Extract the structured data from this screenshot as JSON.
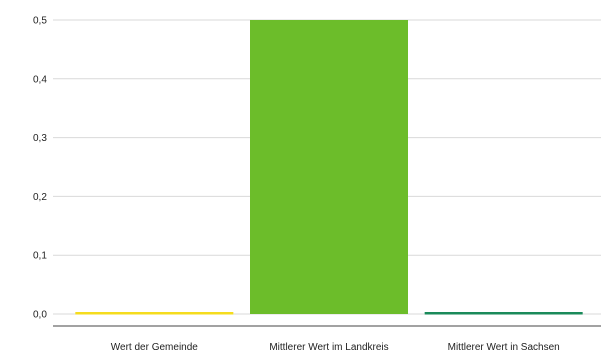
{
  "chart_data": {
    "type": "bar",
    "categories": [
      "Wert der Gemeinde",
      "Mittlerer Wert im Landkreis",
      "Mittlerer Wert in Sachsen"
    ],
    "values": [
      0.0,
      0.5,
      0.0
    ],
    "colors": [
      "#f5dc1e",
      "#6cbd2a",
      "#1a8a5a"
    ],
    "ylim": [
      0,
      0.5
    ],
    "yticks": [
      0.0,
      0.1,
      0.2,
      0.3,
      0.4,
      0.5
    ],
    "ytick_labels": [
      "0,0",
      "0,1",
      "0,2",
      "0,3",
      "0,4",
      "0,5"
    ],
    "grid": true,
    "legend": "none"
  }
}
